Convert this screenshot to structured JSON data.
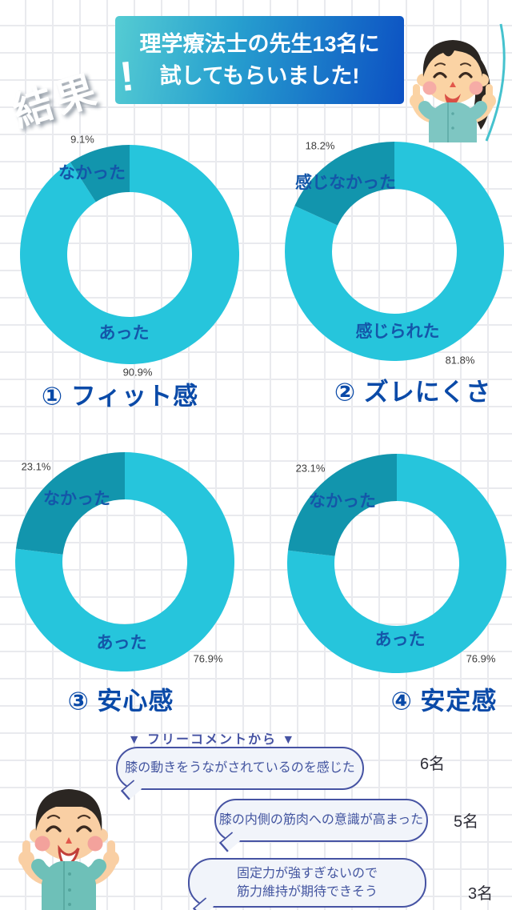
{
  "header": {
    "burst": "結果",
    "burst_exclaim": "!",
    "banner_line1": "理学療法士の先生13名に",
    "banner_line2": "試してもらいました!"
  },
  "chart_data": [
    {
      "type": "pie",
      "title": "① フィット感",
      "labels": [
        "あった",
        "なかった"
      ],
      "values": [
        90.9,
        9.1
      ],
      "value_labels": [
        "90.9%",
        "9.1%"
      ],
      "colors": [
        "#26c5dc",
        "#1295ad"
      ],
      "legend_position": "on-ring",
      "donut": true
    },
    {
      "type": "pie",
      "title": "② ズレにくさ",
      "labels": [
        "感じられた",
        "感じなかった"
      ],
      "values": [
        81.8,
        18.2
      ],
      "value_labels": [
        "81.8%",
        "18.2%"
      ],
      "colors": [
        "#26c5dc",
        "#1295ad"
      ],
      "legend_position": "on-ring",
      "donut": true
    },
    {
      "type": "pie",
      "title": "③ 安心感",
      "labels": [
        "あった",
        "なかった"
      ],
      "values": [
        76.9,
        23.1
      ],
      "value_labels": [
        "76.9%",
        "23.1%"
      ],
      "colors": [
        "#26c5dc",
        "#1295ad"
      ],
      "legend_position": "on-ring",
      "donut": true
    },
    {
      "type": "pie",
      "title": "④ 安定感",
      "labels": [
        "あった",
        "なかった"
      ],
      "values": [
        76.9,
        23.1
      ],
      "value_labels": [
        "76.9%",
        "23.1%"
      ],
      "colors": [
        "#26c5dc",
        "#1295ad"
      ],
      "legend_position": "on-ring",
      "donut": true
    }
  ],
  "comments": {
    "heading": "▼ フリーコメントから ▼",
    "items": [
      {
        "text": "膝の動きをうながされているのを感じた",
        "count": "6名"
      },
      {
        "text": "膝の内側の筋肉への意識が高まった",
        "count": "5名"
      },
      {
        "text": "固定力が強すぎないので\n筋力維持が期待できそう",
        "count": "3名"
      }
    ]
  },
  "colors": {
    "donut_main": "#26c5dc",
    "donut_sub": "#1295ad",
    "ring_label": "#1456a9",
    "chart_title": "#0a4aa8",
    "banner_start": "#55ccd3",
    "banner_end": "#0c50c3",
    "comment_accent": "#4653a3",
    "grid_line": "#e9eaee"
  }
}
